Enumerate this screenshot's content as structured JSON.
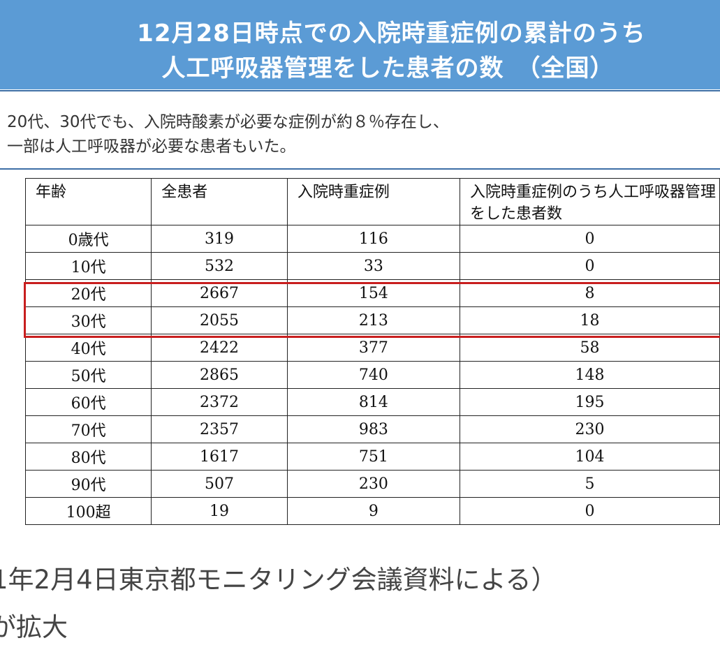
{
  "header": {
    "title_line1": "12月28日時点での入院時重症例の累計のうち",
    "title_line2": "人工呼吸器管理をした患者の数　（全国）"
  },
  "intro": {
    "line1": "20代、30代でも、入院時酸素が必要な症例が約８％存在し、",
    "line2": "一部は人工呼吸器が必要な患者もいた。"
  },
  "table": {
    "headers": [
      "年齢",
      "全患者",
      "入院時重症例",
      "入院時重症例のうち人工呼吸器管理をした患者数"
    ],
    "rows": [
      [
        "0歳代",
        "319",
        "116",
        "0"
      ],
      [
        "10代",
        "532",
        "33",
        "0"
      ],
      [
        "20代",
        "2667",
        "154",
        "8"
      ],
      [
        "30代",
        "2055",
        "213",
        "18"
      ],
      [
        "40代",
        "2422",
        "377",
        "58"
      ],
      [
        "50代",
        "2865",
        "740",
        "148"
      ],
      [
        "60代",
        "2372",
        "814",
        "195"
      ],
      [
        "70代",
        "2357",
        "983",
        "230"
      ],
      [
        "80代",
        "1617",
        "751",
        "104"
      ],
      [
        "90代",
        "507",
        "230",
        "5"
      ],
      [
        "100超",
        "19",
        "9",
        "0"
      ]
    ]
  },
  "footer": {
    "line1": "1年2月4日東京都モニタリング会議資料による）",
    "line2": "が拡大"
  },
  "colors": {
    "header_bg": "#5b9bd5",
    "highlight": "#c81e1e"
  }
}
